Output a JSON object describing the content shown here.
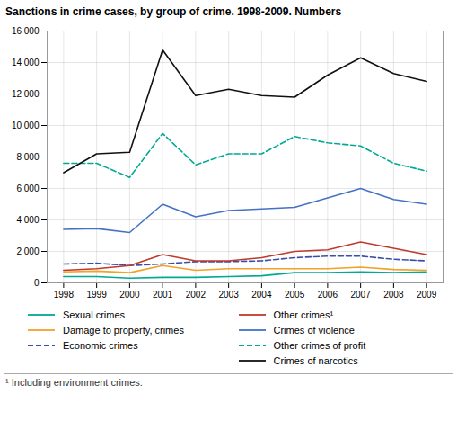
{
  "chart_data": {
    "type": "line",
    "title": "Sanctions in crime cases, by group of crime. 1998-2009. Numbers",
    "footnote": "¹ Including environment crimes.",
    "x": [
      1998,
      1999,
      2000,
      2001,
      2002,
      2003,
      2004,
      2005,
      2006,
      2007,
      2008,
      2009
    ],
    "xlim": [
      1997.5,
      2009.5
    ],
    "xticks": [
      1998,
      1999,
      2000,
      2001,
      2002,
      2003,
      2004,
      2005,
      2006,
      2007,
      2008,
      2009
    ],
    "ylim": [
      0,
      16000
    ],
    "yticks": [
      0,
      {
        "value": 2000,
        "label": "2 000"
      },
      {
        "value": 4000,
        "label": "4 000"
      },
      {
        "value": 6000,
        "label": "6 000"
      },
      {
        "value": 8000,
        "label": "8 000"
      },
      {
        "value": 10000,
        "label": "10 000"
      },
      {
        "value": 12000,
        "label": "12 000"
      },
      {
        "value": 14000,
        "label": "14 000"
      },
      {
        "value": 16000,
        "label": "16 000"
      }
    ],
    "grid": true,
    "legend": "bottom",
    "series": [
      {
        "name": "Sexual crimes",
        "color": "#00A896",
        "line_style": "solid",
        "values": [
          400,
          400,
          300,
          350,
          350,
          400,
          450,
          650,
          650,
          700,
          650,
          700
        ]
      },
      {
        "name": "Damage to property, crimes",
        "color": "#F4A226",
        "line_style": "solid",
        "values": [
          700,
          750,
          650,
          1100,
          800,
          900,
          900,
          900,
          900,
          1000,
          850,
          800
        ]
      },
      {
        "name": "Economic crimes",
        "color": "#3B4FA8",
        "line_style": "dashed",
        "values": [
          1200,
          1250,
          1100,
          1200,
          1350,
          1350,
          1400,
          1600,
          1700,
          1700,
          1500,
          1400
        ]
      },
      {
        "name": "Other crimes¹",
        "color": "#C0392B",
        "line_style": "solid",
        "values": [
          800,
          900,
          1100,
          1800,
          1400,
          1400,
          1600,
          2000,
          2100,
          2600,
          2200,
          1800
        ]
      },
      {
        "name": "Crimes of violence",
        "color": "#4472C4",
        "line_style": "solid",
        "values": [
          3400,
          3450,
          3200,
          5000,
          4200,
          4600,
          4700,
          4800,
          5400,
          6000,
          5300,
          5000
        ]
      },
      {
        "name": "Other crimes of profit",
        "color": "#00A896",
        "line_style": "dashed",
        "values": [
          7600,
          7600,
          6700,
          9500,
          7500,
          8200,
          8200,
          9300,
          8900,
          8700,
          7600,
          7100
        ]
      },
      {
        "name": "Crimes of narcotics",
        "color": "#111111",
        "line_style": "solid",
        "values": [
          7000,
          8200,
          8300,
          14800,
          11900,
          12300,
          11900,
          11800,
          13200,
          14300,
          13300,
          12800
        ]
      }
    ]
  }
}
